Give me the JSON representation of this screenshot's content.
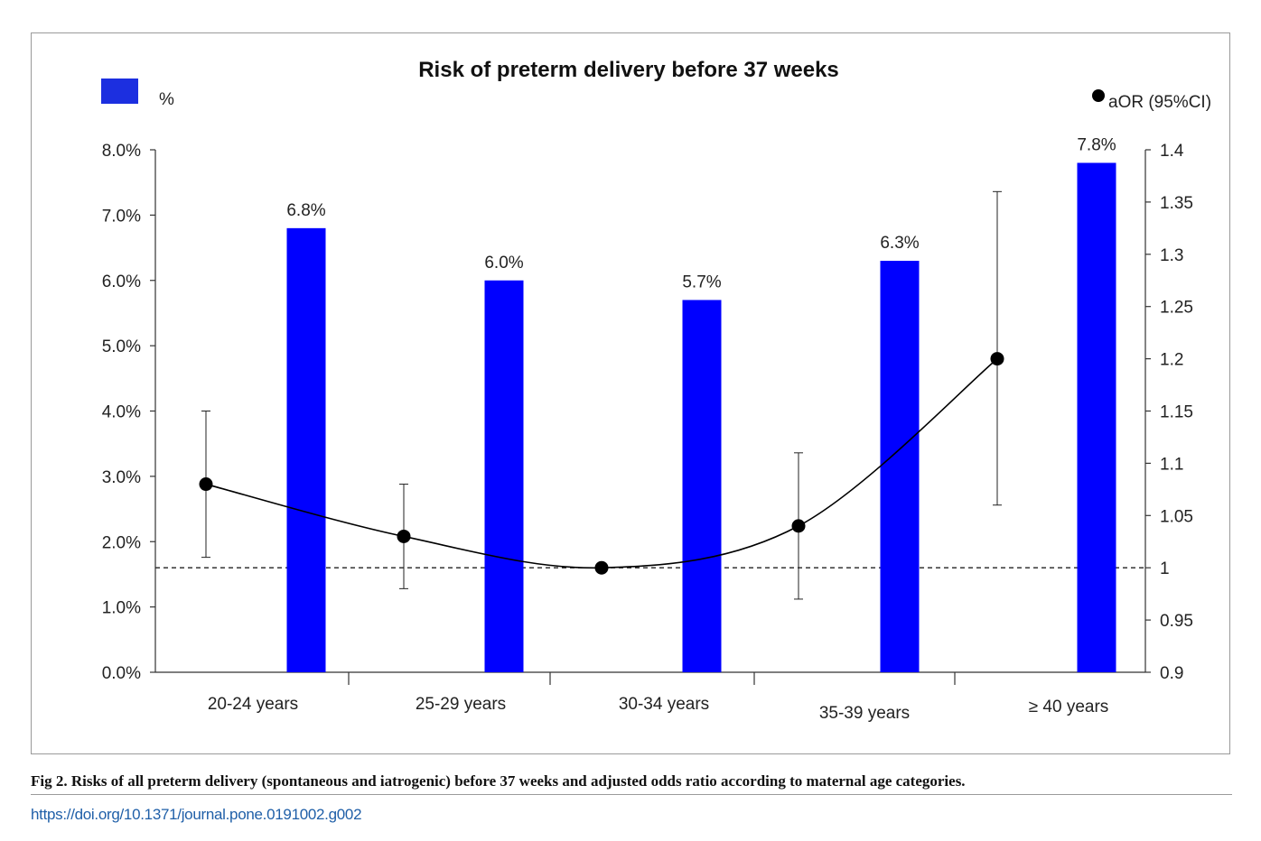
{
  "chart_data": {
    "type": "bar",
    "title": "Risk of preterm delivery before 37 weeks",
    "categories": [
      "20-24 years",
      "25-29 years",
      "30-34 years",
      "35-39 years",
      "≥ 40 years"
    ],
    "y_left": {
      "ylim": [
        0,
        8
      ],
      "ticks": [
        "0.0%",
        "1.0%",
        "2.0%",
        "3.0%",
        "4.0%",
        "5.0%",
        "6.0%",
        "7.0%",
        "8.0%"
      ]
    },
    "y_right": {
      "ylim": [
        0.9,
        1.4
      ],
      "ticks": [
        "0.9",
        "0.95",
        "1",
        "1.05",
        "1.1",
        "1.15",
        "1.2",
        "1.25",
        "1.3",
        "1.35",
        "1.4"
      ]
    },
    "reference_line": 1.0,
    "series": [
      {
        "name": "%",
        "type": "bar",
        "axis": "left",
        "color": "#0000ff",
        "values": [
          6.8,
          6.0,
          5.7,
          6.3,
          7.8
        ],
        "labels": [
          "6.8%",
          "6.0%",
          "5.7%",
          "6.3%",
          "7.8%"
        ]
      },
      {
        "name": "aOR (95%CI)",
        "type": "line",
        "axis": "right",
        "color": "#000000",
        "values": [
          1.08,
          1.03,
          1.0,
          1.04,
          1.2
        ],
        "ci_low": [
          1.01,
          0.98,
          null,
          0.97,
          1.06
        ],
        "ci_high": [
          1.15,
          1.08,
          null,
          1.11,
          1.36
        ]
      }
    ],
    "grid": false,
    "legend": "top"
  },
  "caption": "Fig 2.  Risks of all preterm delivery (spontaneous and iatrogenic) before 37 weeks and adjusted odds ratio according to maternal age categories.",
  "doi": "https://doi.org/10.1371/journal.pone.0191002.g002"
}
